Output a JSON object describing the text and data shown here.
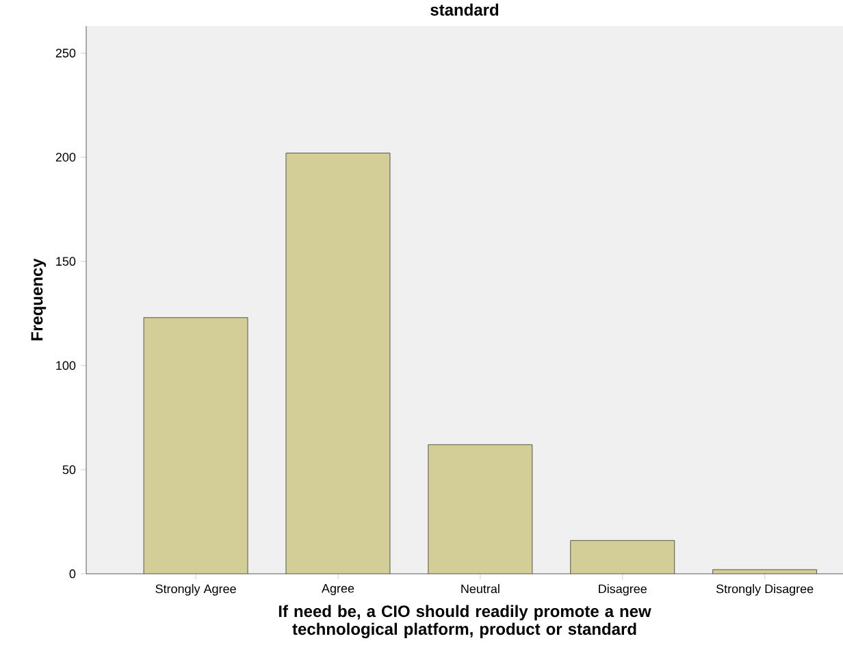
{
  "chart_data": {
    "type": "bar",
    "title": "standard",
    "xlabel": "If need be, a CIO should readily promote a new technological platform, product or standard",
    "ylabel": "Frequency",
    "categories": [
      "Strongly Agree",
      "Agree",
      "Neutral",
      "Disagree",
      "Strongly Disagree"
    ],
    "values": [
      123,
      202,
      62,
      16,
      2
    ],
    "color": "#d3ce97",
    "ylim": [
      0,
      263
    ],
    "yticks": [
      0,
      50,
      100,
      150,
      200,
      250
    ],
    "grid": false
  }
}
